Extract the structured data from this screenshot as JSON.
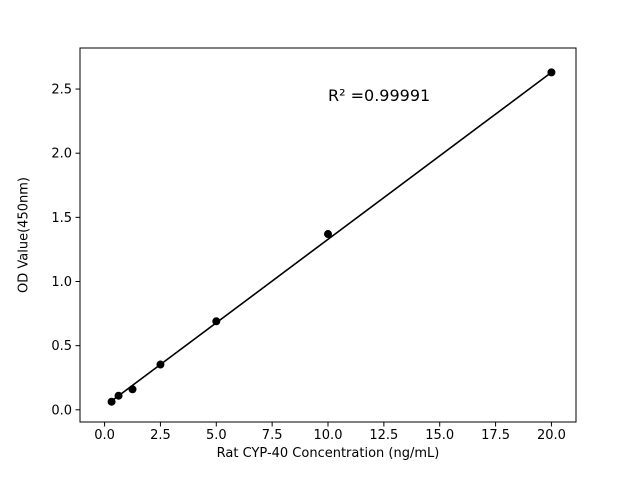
{
  "chart_data": {
    "type": "scatter",
    "title": "",
    "xlabel": "Rat CYP-40 Concentration (ng/mL)",
    "ylabel": "OD Value(450nm)",
    "x": [
      0.313,
      0.625,
      1.25,
      2.5,
      5,
      10,
      20
    ],
    "y": [
      0.063,
      0.11,
      0.16,
      0.353,
      0.69,
      1.37,
      2.63
    ],
    "fit": {
      "slope": 0.1301,
      "intercept": 0.028,
      "r_squared_label": "R² =0.99991"
    },
    "xlim": [
      -1.1,
      21.1
    ],
    "ylim": [
      -0.095,
      2.82
    ],
    "x_tick_values": [
      0,
      2.5,
      5,
      7.5,
      10,
      12.5,
      15,
      17.5,
      20
    ],
    "x_tick_labels": [
      "0.0",
      "2.5",
      "5.0",
      "7.5",
      "10.0",
      "12.5",
      "15.0",
      "17.5",
      "20.0"
    ],
    "y_tick_values": [
      0,
      0.5,
      1.0,
      1.5,
      2.0,
      2.5
    ],
    "y_tick_labels": [
      "0.0",
      "0.5",
      "1.0",
      "1.5",
      "2.0",
      "2.5"
    ],
    "grid": false,
    "legend": null,
    "background_color": "#ffffff",
    "marker_color": "#000000",
    "line_color": "#000000",
    "axis_color": "#000000"
  }
}
